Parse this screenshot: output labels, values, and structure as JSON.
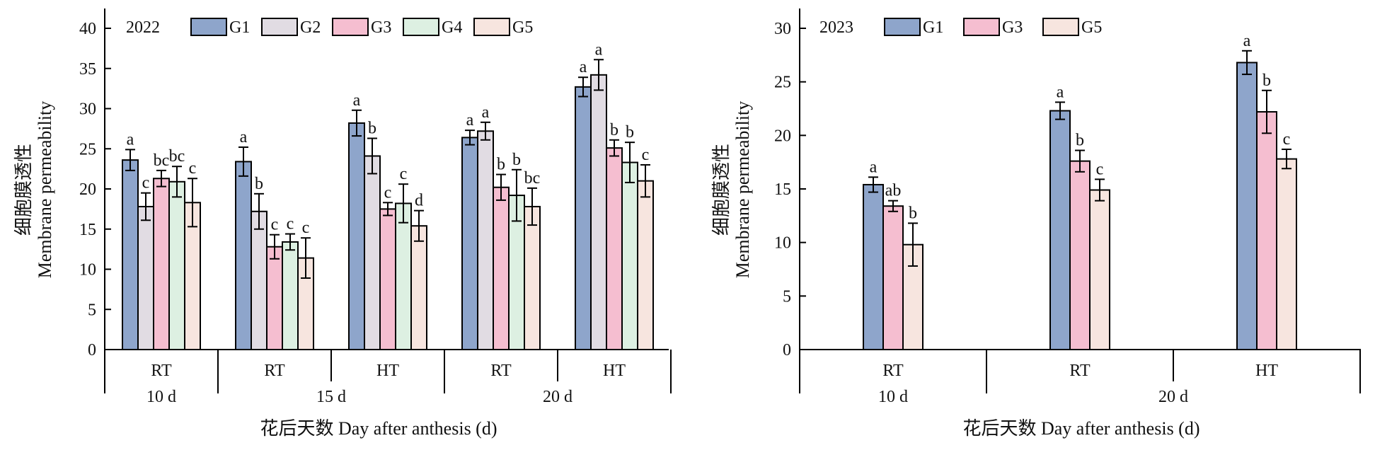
{
  "colors": {
    "G1": "#8EA5CB",
    "G2": "#E1DCE3",
    "G3": "#F5BED0",
    "G4": "#DDF0E2",
    "G5": "#F7E5DF"
  },
  "chart_data": [
    {
      "type": "bar",
      "year_label": "2022",
      "ylabel": "细胞膜透性 Membrane permeability",
      "xlabel": "花后天数 Day after anthesis (d)",
      "ylim": [
        0,
        40
      ],
      "yticks": [
        0,
        5,
        10,
        15,
        20,
        25,
        30,
        35,
        40
      ],
      "legend": [
        "G1",
        "G2",
        "G3",
        "G4",
        "G5"
      ],
      "groups": [
        {
          "label": "RT",
          "day": "10 d",
          "bars": [
            {
              "series": "G1",
              "value": 23.6,
              "err": 1.3,
              "sig": "a"
            },
            {
              "series": "G2",
              "value": 17.8,
              "err": 1.7,
              "sig": "c"
            },
            {
              "series": "G3",
              "value": 21.3,
              "err": 1.0,
              "sig": "bc"
            },
            {
              "series": "G4",
              "value": 20.9,
              "err": 1.9,
              "sig": "bc"
            },
            {
              "series": "G5",
              "value": 18.3,
              "err": 3.0,
              "sig": "c"
            }
          ]
        },
        {
          "label": "RT",
          "day": "15 d",
          "bars": [
            {
              "series": "G1",
              "value": 23.4,
              "err": 1.8,
              "sig": "a"
            },
            {
              "series": "G2",
              "value": 17.2,
              "err": 2.2,
              "sig": "b"
            },
            {
              "series": "G3",
              "value": 12.8,
              "err": 1.5,
              "sig": "c"
            },
            {
              "series": "G4",
              "value": 13.4,
              "err": 1.0,
              "sig": "c"
            },
            {
              "series": "G5",
              "value": 11.4,
              "err": 2.5,
              "sig": "c"
            }
          ]
        },
        {
          "label": "HT",
          "day": "15 d",
          "bars": [
            {
              "series": "G1",
              "value": 28.2,
              "err": 1.6,
              "sig": "a"
            },
            {
              "series": "G2",
              "value": 24.1,
              "err": 2.2,
              "sig": "b"
            },
            {
              "series": "G3",
              "value": 17.5,
              "err": 0.8,
              "sig": "c"
            },
            {
              "series": "G4",
              "value": 18.2,
              "err": 2.4,
              "sig": "c"
            },
            {
              "series": "G5",
              "value": 15.4,
              "err": 1.9,
              "sig": "d"
            }
          ]
        },
        {
          "label": "RT",
          "day": "20 d",
          "bars": [
            {
              "series": "G1",
              "value": 26.4,
              "err": 0.9,
              "sig": "a"
            },
            {
              "series": "G2",
              "value": 27.2,
              "err": 1.1,
              "sig": "a"
            },
            {
              "series": "G3",
              "value": 20.2,
              "err": 1.6,
              "sig": "b"
            },
            {
              "series": "G4",
              "value": 19.2,
              "err": 3.2,
              "sig": "b"
            },
            {
              "series": "G5",
              "value": 17.8,
              "err": 2.3,
              "sig": "bc"
            }
          ]
        },
        {
          "label": "HT",
          "day": "20 d",
          "bars": [
            {
              "series": "G1",
              "value": 32.7,
              "err": 1.2,
              "sig": "a"
            },
            {
              "series": "G2",
              "value": 34.2,
              "err": 1.9,
              "sig": "a"
            },
            {
              "series": "G3",
              "value": 25.1,
              "err": 1.0,
              "sig": "b"
            },
            {
              "series": "G4",
              "value": 23.3,
              "err": 2.5,
              "sig": "b"
            },
            {
              "series": "G5",
              "value": 21.0,
              "err": 2.0,
              "sig": "c"
            }
          ]
        }
      ],
      "days": [
        {
          "label": "10 d",
          "groups": 1
        },
        {
          "label": "15 d",
          "groups": 2
        },
        {
          "label": "20 d",
          "groups": 2
        }
      ]
    },
    {
      "type": "bar",
      "year_label": "2023",
      "ylabel": "细胞膜透性 Membrane permeability",
      "xlabel": "花后天数 Day after anthesis (d)",
      "ylim": [
        0,
        30
      ],
      "yticks": [
        0,
        5,
        10,
        15,
        20,
        25,
        30
      ],
      "legend": [
        "G1",
        "G3",
        "G5"
      ],
      "groups": [
        {
          "label": "RT",
          "day": "10 d",
          "bars": [
            {
              "series": "G1",
              "value": 15.4,
              "err": 0.7,
              "sig": "a"
            },
            {
              "series": "G3",
              "value": 13.4,
              "err": 0.5,
              "sig": "ab"
            },
            {
              "series": "G5",
              "value": 9.8,
              "err": 2.0,
              "sig": "b"
            }
          ]
        },
        {
          "label": "RT",
          "day": "20 d",
          "bars": [
            {
              "series": "G1",
              "value": 22.3,
              "err": 0.8,
              "sig": "a"
            },
            {
              "series": "G3",
              "value": 17.6,
              "err": 1.0,
              "sig": "b"
            },
            {
              "series": "G5",
              "value": 14.9,
              "err": 1.0,
              "sig": "c"
            }
          ]
        },
        {
          "label": "HT",
          "day": "20 d",
          "bars": [
            {
              "series": "G1",
              "value": 26.8,
              "err": 1.1,
              "sig": "a"
            },
            {
              "series": "G3",
              "value": 22.2,
              "err": 2.0,
              "sig": "b"
            },
            {
              "series": "G5",
              "value": 17.8,
              "err": 0.9,
              "sig": "c"
            }
          ]
        }
      ],
      "days": [
        {
          "label": "10 d",
          "groups": 1
        },
        {
          "label": "20 d",
          "groups": 2
        }
      ]
    }
  ]
}
